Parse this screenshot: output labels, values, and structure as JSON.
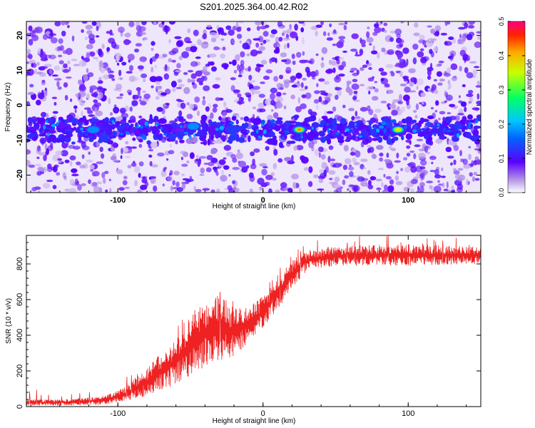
{
  "chart_data": [
    {
      "type": "heatmap",
      "title": "S201.2025.364.00.42.R02",
      "xlabel": "Height of straight line (km)",
      "ylabel": "Frequency (Hz)",
      "xlim": [
        -163,
        150
      ],
      "ylim": [
        -25,
        24
      ],
      "xticks": [
        -100,
        0,
        100
      ],
      "yticks": [
        -20,
        -10,
        0,
        10,
        20
      ],
      "colorbar": {
        "label": "Normalized spectral amplitude",
        "range": [
          0,
          0.5
        ],
        "ticks": [
          "0.0",
          "0.1",
          "0.2",
          "0.3",
          "0.4",
          "0.5"
        ]
      },
      "band": {
        "center_hz": -7,
        "halfwidth_hz": 4,
        "range_km": [
          -163,
          150
        ]
      },
      "peaks": [
        {
          "x": 25,
          "y": -7,
          "value": 0.42
        },
        {
          "x": 93,
          "y": -7,
          "value": 0.38
        },
        {
          "x": -117,
          "y": -7,
          "value": 0.2
        },
        {
          "x": -48,
          "y": -6,
          "value": 0.18
        },
        {
          "x": -21,
          "y": -7,
          "value": 0.16
        }
      ],
      "background_level": 0.03
    },
    {
      "type": "line",
      "xlabel": "Height of straight line (km)",
      "ylabel": "SNR (10 * v/v)",
      "xlim": [
        -163,
        150
      ],
      "ylim": [
        0,
        960
      ],
      "xticks": [
        -100,
        0,
        100
      ],
      "yticks": [
        0,
        200,
        400,
        600,
        800
      ],
      "color": "#ee2222",
      "envelope": [
        {
          "x": -163,
          "lo": 5,
          "hi": 40
        },
        {
          "x": -140,
          "lo": 5,
          "hi": 40
        },
        {
          "x": -110,
          "lo": 10,
          "hi": 60
        },
        {
          "x": -95,
          "lo": 30,
          "hi": 110
        },
        {
          "x": -80,
          "lo": 60,
          "hi": 220
        },
        {
          "x": -60,
          "lo": 120,
          "hi": 390
        },
        {
          "x": -45,
          "lo": 200,
          "hi": 560
        },
        {
          "x": -30,
          "lo": 260,
          "hi": 640
        },
        {
          "x": -20,
          "lo": 280,
          "hi": 560
        },
        {
          "x": -10,
          "lo": 360,
          "hi": 560
        },
        {
          "x": 0,
          "lo": 440,
          "hi": 620
        },
        {
          "x": 10,
          "lo": 540,
          "hi": 720
        },
        {
          "x": 20,
          "lo": 660,
          "hi": 820
        },
        {
          "x": 30,
          "lo": 760,
          "hi": 880
        },
        {
          "x": 50,
          "lo": 790,
          "hi": 900
        },
        {
          "x": 100,
          "lo": 790,
          "hi": 910
        },
        {
          "x": 150,
          "lo": 800,
          "hi": 900
        }
      ]
    }
  ]
}
